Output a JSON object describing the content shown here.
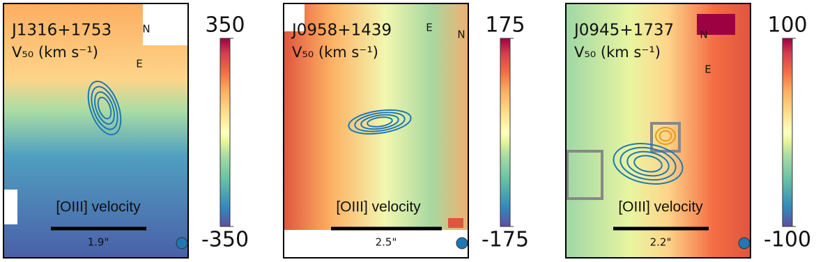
{
  "chart_data": [
    {
      "type": "map",
      "title": "J1316+1753",
      "label": "V₅₀ (km s⁻¹)",
      "annotation": "[OIII] velocity",
      "scale_label": "1.9\"",
      "compass": [
        "N",
        "E"
      ],
      "clim": [
        -350,
        350
      ],
      "cticks": [
        -350,
        350
      ]
    },
    {
      "type": "map",
      "title": "J0958+1439",
      "label": "V₅₀ (km s⁻¹)",
      "annotation": "[OIII] velocity",
      "scale_label": "2.5\"",
      "compass": [
        "E",
        "N"
      ],
      "clim": [
        -175,
        175
      ],
      "cticks": [
        -175,
        175
      ]
    },
    {
      "type": "map",
      "title": "J0945+1737",
      "label": "V₅₀ (km s⁻¹)",
      "annotation": "[OIII] velocity",
      "scale_label": "2.2\"",
      "compass": [
        "N",
        "E"
      ],
      "clim": [
        -100,
        100
      ],
      "cticks": [
        -100,
        100
      ]
    }
  ]
}
